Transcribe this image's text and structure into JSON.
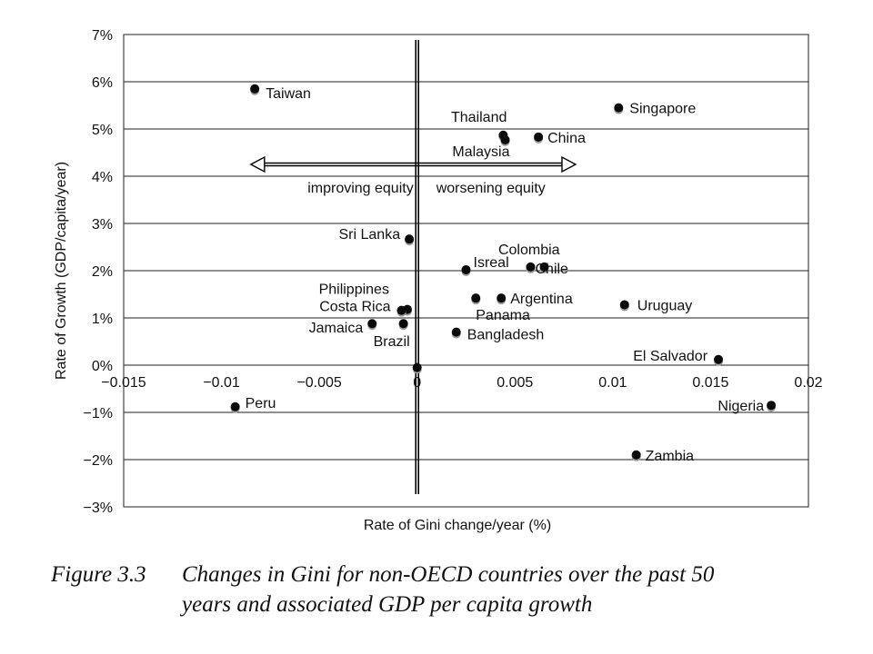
{
  "chart_data": {
    "type": "scatter",
    "xlabel": "Rate of Gini change/year (%)",
    "ylabel": "Rate of Growth (GDP/capita/year)",
    "xlim": [
      -0.015,
      0.02
    ],
    "ylim": [
      -3,
      7
    ],
    "x_ticks": [
      -0.015,
      -0.01,
      -0.005,
      0,
      0.005,
      0.01,
      0.015,
      0.02
    ],
    "x_tick_labels": [
      "−0.015",
      "−0.01",
      "−0.005",
      "0",
      "0.005",
      "0.01",
      "0.015",
      "0.02"
    ],
    "y_ticks": [
      7,
      6,
      5,
      4,
      3,
      2,
      1,
      0,
      -1,
      -2,
      -3
    ],
    "y_tick_labels": [
      "7%",
      "6%",
      "5%",
      "4%",
      "3%",
      "2%",
      "1%",
      "0%",
      "−1%",
      "−2%",
      "−3%"
    ],
    "grid": "horizontal",
    "points": [
      {
        "label": "Taiwan",
        "x": -0.0083,
        "y": 5.85
      },
      {
        "label": "Singapore",
        "x": 0.0103,
        "y": 5.45
      },
      {
        "label": "Thailand",
        "x": 0.0044,
        "y": 4.87
      },
      {
        "label": "Malaysia",
        "x": 0.0045,
        "y": 4.77
      },
      {
        "label": "China",
        "x": 0.0062,
        "y": 4.83
      },
      {
        "label": "Sri Lanka",
        "x": -0.0004,
        "y": 2.67
      },
      {
        "label": "Colombia",
        "x": 0.0065,
        "y": 2.08
      },
      {
        "label": "Isreal",
        "x": 0.0025,
        "y": 2.02
      },
      {
        "label": "Chile",
        "x": 0.0058,
        "y": 2.08
      },
      {
        "label": "Philippines",
        "x": -0.0005,
        "y": 1.18
      },
      {
        "label": "Costa Rica",
        "x": -0.0008,
        "y": 1.16
      },
      {
        "label": "Argentina",
        "x": 0.0043,
        "y": 1.42
      },
      {
        "label": "Panama",
        "x": 0.003,
        "y": 1.42
      },
      {
        "label": "Uruguay",
        "x": 0.0106,
        "y": 1.28
      },
      {
        "label": "Jamaica",
        "x": -0.0023,
        "y": 0.88
      },
      {
        "label": "Brazil",
        "x": -0.0007,
        "y": 0.88
      },
      {
        "label": "Bangladesh",
        "x": 0.002,
        "y": 0.7
      },
      {
        "label": "El Salvador",
        "x": 0.0154,
        "y": 0.12
      },
      {
        "label": "",
        "x": 0.0,
        "y": -0.05
      },
      {
        "label": "Peru",
        "x": -0.0093,
        "y": -0.88
      },
      {
        "label": "Nigeria",
        "x": 0.0181,
        "y": -0.85
      },
      {
        "label": "Zambia",
        "x": 0.0112,
        "y": -1.9
      }
    ],
    "annotations": {
      "left_arrow_label": "improving equity",
      "right_arrow_label": "worsening equity",
      "arrow_y": 4.25
    }
  },
  "caption": {
    "label": "Figure 3.3",
    "line1": "Changes in Gini for non-OECD countries over the past 50",
    "line2": "years and associated GDP per capita growth"
  }
}
